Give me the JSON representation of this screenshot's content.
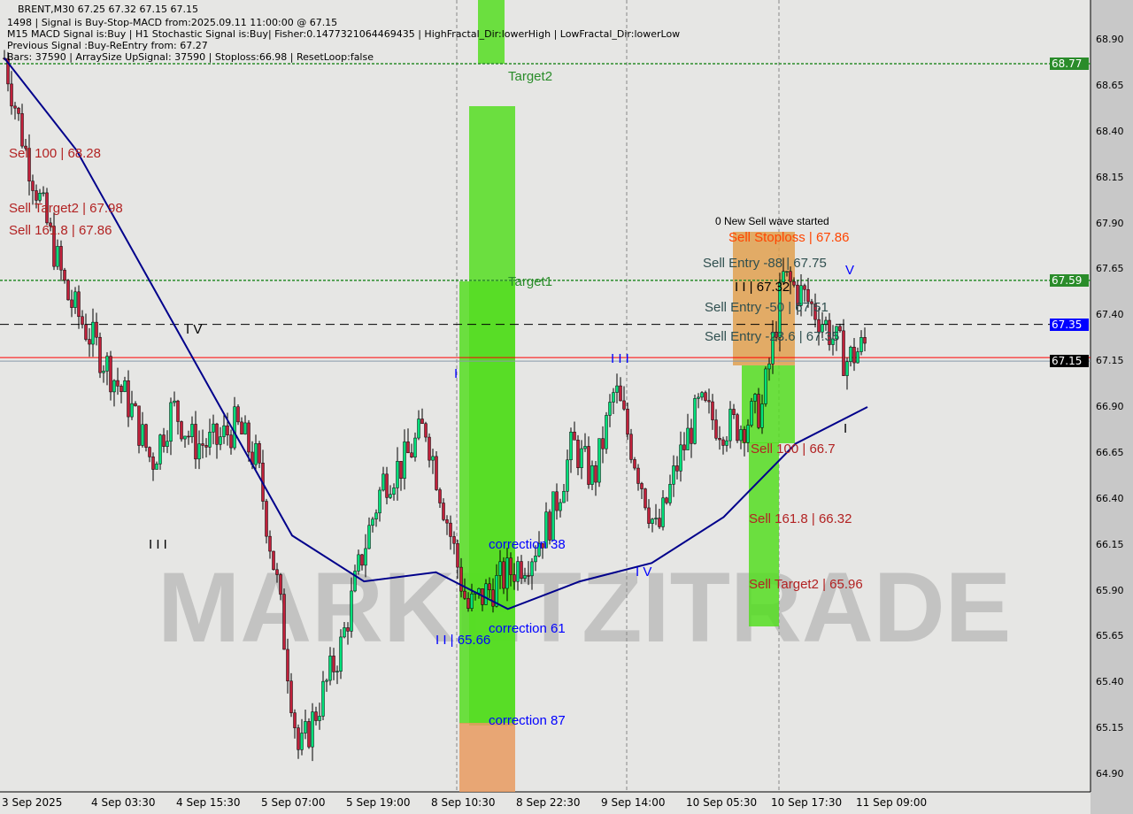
{
  "header": {
    "line1": "BRENT,M30  67.25 67.32 67.15 67.15",
    "line2": "1498 | Signal is Buy-Stop-MACD from:2025.09.11 11:00:00 @ 67.15",
    "line3": "M15 MACD Signal is:Buy | H1 Stochastic Signal is:Buy| Fisher:0.1477321064469435 | HighFractal_Dir:lowerHigh | LowFractal_Dir:lowerLow",
    "line4": "Previous Signal :Buy-ReEntry from: 67.27",
    "line5": "Bars: 37590 | ArraySize UpSignal: 37590 | Stoploss:66.98 | ResetLoop:false"
  },
  "watermark": "MARKETZITRADE",
  "price_tags": [
    {
      "label": "68.77",
      "price": 68.77,
      "color": "#2a8c2a"
    },
    {
      "label": "67.59",
      "price": 67.59,
      "color": "#2a8c2a"
    },
    {
      "label": "67.35",
      "price": 67.35,
      "color": "#0000ff"
    },
    {
      "label": "67.15",
      "price": 67.15,
      "color": "#000000"
    }
  ],
  "annotations": [
    {
      "text": "Sell 100 | 68.28",
      "x": 10,
      "price": 68.28,
      "color": "#b22222"
    },
    {
      "text": "Sell Target2 | 67.98",
      "x": 10,
      "price": 67.98,
      "color": "#b22222"
    },
    {
      "text": "Sell 161.8 | 67.86",
      "x": 10,
      "price": 67.86,
      "color": "#b22222"
    },
    {
      "text": "I V",
      "x": 210,
      "price": 67.32,
      "color": "#000000"
    },
    {
      "text": "I I I",
      "x": 168,
      "price": 66.15,
      "color": "#000000"
    },
    {
      "text": "I",
      "x": 513,
      "price": 67.08,
      "color": "#0000ff"
    },
    {
      "text": "I I | 65.66",
      "x": 492,
      "price": 65.63,
      "color": "#0000ff"
    },
    {
      "text": "Target2",
      "x": 574,
      "price": 68.7,
      "color": "#2a8c2a"
    },
    {
      "text": "Target1",
      "x": 574,
      "price": 67.58,
      "color": "#2a8c2a"
    },
    {
      "text": "correction 38",
      "x": 552,
      "price": 66.15,
      "color": "#0000ff"
    },
    {
      "text": "correction 61",
      "x": 552,
      "price": 65.69,
      "color": "#0000ff"
    },
    {
      "text": "correction 87",
      "x": 552,
      "price": 65.19,
      "color": "#0000ff"
    },
    {
      "text": "I I I",
      "x": 690,
      "price": 67.16,
      "color": "#0000ff"
    },
    {
      "text": "I V",
      "x": 718,
      "price": 66.0,
      "color": "#0000ff"
    },
    {
      "text": "0 New Sell wave started",
      "x": 808,
      "price": 67.88,
      "color": "#000000"
    },
    {
      "text": "Sell Stoploss | 67.86",
      "x": 823,
      "price": 67.82,
      "color": "#ff4500"
    },
    {
      "text": "Sell Entry -88 | 67.75",
      "x": 794,
      "price": 67.68,
      "color": "#2f4f4f"
    },
    {
      "text": "V",
      "x": 866,
      "price": 67.64,
      "color": "#0000ff"
    },
    {
      "text": "I I | 67.32",
      "x": 830,
      "price": 67.55,
      "color": "#000000"
    },
    {
      "text": "Sell Entry -50 | 67.51",
      "x": 796,
      "price": 67.44,
      "color": "#2f4f4f"
    },
    {
      "text": "Sell Entry -23.6 | 67.35",
      "x": 796,
      "price": 67.28,
      "color": "#2f4f4f"
    },
    {
      "text": "I",
      "x": 953,
      "price": 66.78,
      "color": "#000000"
    },
    {
      "text": "Sell 100 | 66.7",
      "x": 848,
      "price": 66.67,
      "color": "#b22222"
    },
    {
      "text": "Sell 161.8 | 66.32",
      "x": 846,
      "price": 66.29,
      "color": "#b22222"
    },
    {
      "text": "Sell Target2 | 65.96",
      "x": 846,
      "price": 65.93,
      "color": "#b22222"
    }
  ],
  "chart_data": {
    "type": "candlestick",
    "title": "BRENT,M30",
    "ylim": [
      64.8,
      69.0
    ],
    "y_ticks": [
      "68.90",
      "68.65",
      "68.40",
      "68.15",
      "67.90",
      "67.65",
      "67.40",
      "67.15",
      "66.90",
      "66.65",
      "66.40",
      "66.15",
      "65.90",
      "65.65",
      "65.40",
      "65.15",
      "64.90"
    ],
    "x_ticks": [
      "3 Sep 2025",
      "4 Sep 03:30",
      "4 Sep 15:30",
      "5 Sep 07:00",
      "5 Sep 19:00",
      "8 Sep 10:30",
      "8 Sep 22:30",
      "9 Sep 14:00",
      "10 Sep 05:30",
      "10 Sep 17:30",
      "11 Sep 09:00"
    ],
    "close_path": [
      68.8,
      68.3,
      67.9,
      67.5,
      67.3,
      67.1,
      66.9,
      66.6,
      66.9,
      66.7,
      66.7,
      66.8,
      66.6,
      65.9,
      65.0,
      65.3,
      65.6,
      66.1,
      66.5,
      66.6,
      66.8,
      66.3,
      65.8,
      65.9,
      66.0,
      66.1,
      66.3,
      66.7,
      66.5,
      67.0,
      66.6,
      66.2,
      66.6,
      66.9,
      66.8,
      66.8,
      66.9,
      67.6,
      67.5,
      67.35,
      67.15,
      67.25
    ],
    "moving_average": [
      68.8,
      68.3,
      67.6,
      66.9,
      66.2,
      65.95,
      66.0,
      65.8,
      65.95,
      66.05,
      66.3,
      66.7,
      66.9
    ],
    "levels": {
      "target_line": 68.77,
      "entry_line": 67.59,
      "dashed_line": 67.35,
      "current_price": 67.15
    }
  }
}
